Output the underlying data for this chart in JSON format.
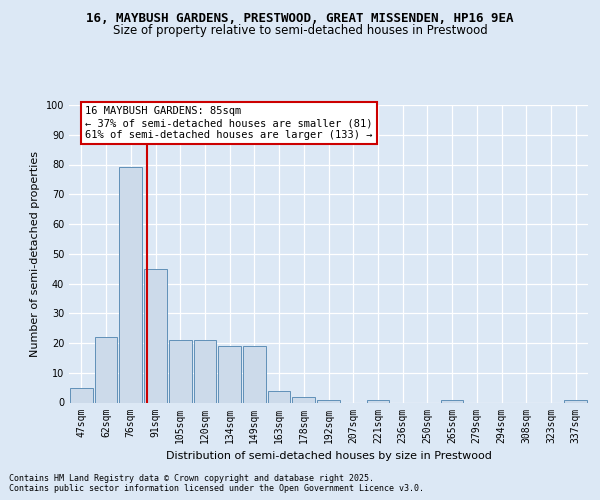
{
  "title1": "16, MAYBUSH GARDENS, PRESTWOOD, GREAT MISSENDEN, HP16 9EA",
  "title2": "Size of property relative to semi-detached houses in Prestwood",
  "xlabel": "Distribution of semi-detached houses by size in Prestwood",
  "ylabel": "Number of semi-detached properties",
  "categories": [
    "47sqm",
    "62sqm",
    "76sqm",
    "91sqm",
    "105sqm",
    "120sqm",
    "134sqm",
    "149sqm",
    "163sqm",
    "178sqm",
    "192sqm",
    "207sqm",
    "221sqm",
    "236sqm",
    "250sqm",
    "265sqm",
    "279sqm",
    "294sqm",
    "308sqm",
    "323sqm",
    "337sqm"
  ],
  "values": [
    5,
    22,
    79,
    45,
    21,
    21,
    19,
    19,
    4,
    2,
    1,
    0,
    1,
    0,
    0,
    1,
    0,
    0,
    0,
    0,
    1
  ],
  "bar_color": "#ccdaea",
  "bar_edge_color": "#6090b8",
  "vline_x": 2.65,
  "vline_color": "#cc0000",
  "annotation_line1": "16 MAYBUSH GARDENS: 85sqm",
  "annotation_line2": "← 37% of semi-detached houses are smaller (81)",
  "annotation_line3": "61% of semi-detached houses are larger (133) →",
  "annotation_box_facecolor": "#ffffff",
  "annotation_box_edgecolor": "#cc0000",
  "footnote1": "Contains HM Land Registry data © Crown copyright and database right 2025.",
  "footnote2": "Contains public sector information licensed under the Open Government Licence v3.0.",
  "bg_color": "#dce8f5",
  "ylim_max": 100,
  "title1_fontsize": 9,
  "title2_fontsize": 8.5,
  "ylabel_fontsize": 8,
  "xlabel_fontsize": 8,
  "tick_fontsize": 7,
  "annot_fontsize": 7.5,
  "footnote_fontsize": 6
}
